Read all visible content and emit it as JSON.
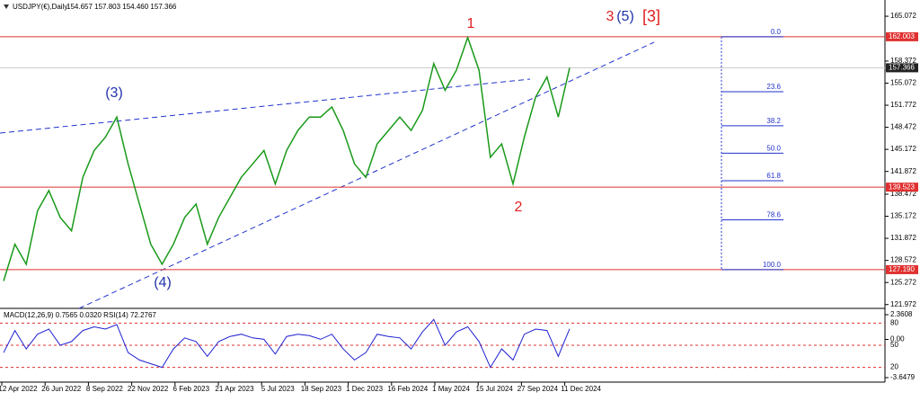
{
  "chart_data": {
    "type": "line",
    "title": "USDJPY(€),Daily",
    "ohlc_header": "154.657 157.803 154.460 157.366",
    "color": "#1a9a1a",
    "ylim": [
      121.4,
      167.5
    ],
    "yticks": [
      165.072,
      158.372,
      155.072,
      151.772,
      148.472,
      145.172,
      141.872,
      138.472,
      135.172,
      131.872,
      128.572,
      125.272,
      121.972
    ],
    "x_labels": [
      "12 Apr 2022",
      "26 Jun 2022",
      "8 Sep 2022",
      "22 Nov 2022",
      "6 Feb 2023",
      "21 Apr 2023",
      "5 Jul 2023",
      "18 Sep 2023",
      "1 Dec 2023",
      "16 Feb 2024",
      "1 May 2024",
      "15 Jul 2024",
      "27 Sep 2024",
      "11 Dec 2024"
    ],
    "values": [
      125.5,
      131,
      128,
      136,
      139,
      135,
      133,
      141,
      145,
      147,
      150,
      143,
      137,
      131,
      128,
      131,
      135,
      137,
      131,
      135,
      138,
      141,
      143,
      145,
      140,
      145,
      148,
      150,
      150,
      151.5,
      148,
      143,
      141,
      146,
      148,
      150,
      148,
      151,
      158,
      154,
      157,
      161.9,
      157,
      144,
      146,
      140,
      147,
      153,
      156,
      150,
      157.366
    ],
    "current_price": {
      "value": 157.366,
      "label": "157.366"
    },
    "hlines": [
      {
        "value": 162.003,
        "label": "162.003"
      },
      {
        "value": 139.523,
        "label": "139.523"
      },
      {
        "value": 127.19,
        "label": "127.190"
      }
    ],
    "fib_levels": [
      {
        "value": 0,
        "label": "0.0"
      },
      23.6,
      38.2,
      {
        "value": 50,
        "label": "50.0"
      },
      61.8,
      78.6,
      {
        "value": 100,
        "label": "100.0"
      }
    ],
    "wave_labels": {
      "w1": "1",
      "w2": "2",
      "w3_blue": "(3)",
      "w4_blue": "(4)",
      "top3": "3",
      "top5": "(5)",
      "topb3": "[3]"
    },
    "indicator": {
      "title": "MACD(12,26,9) 0.7565 0.0320 RSI(14) 72.2767",
      "rsi_color": "#1f1fd0",
      "rsi_lim": [
        0,
        100
      ],
      "rsi_ticks": [
        80,
        50,
        20
      ],
      "rsi": [
        40,
        70,
        45,
        65,
        72,
        50,
        55,
        70,
        75,
        72,
        78,
        40,
        30,
        25,
        20,
        45,
        60,
        55,
        35,
        55,
        62,
        65,
        60,
        58,
        38,
        62,
        65,
        63,
        58,
        65,
        45,
        30,
        40,
        65,
        62,
        60,
        45,
        68,
        85,
        50,
        68,
        75,
        55,
        20,
        45,
        30,
        65,
        72,
        70,
        35,
        72.2767
      ],
      "macd_lim": [
        -4.077,
        2.962
      ],
      "macd_ticks": [
        2.3608,
        {
          "value": 0,
          "label": "0.00"
        },
        -3.6479
      ]
    }
  }
}
